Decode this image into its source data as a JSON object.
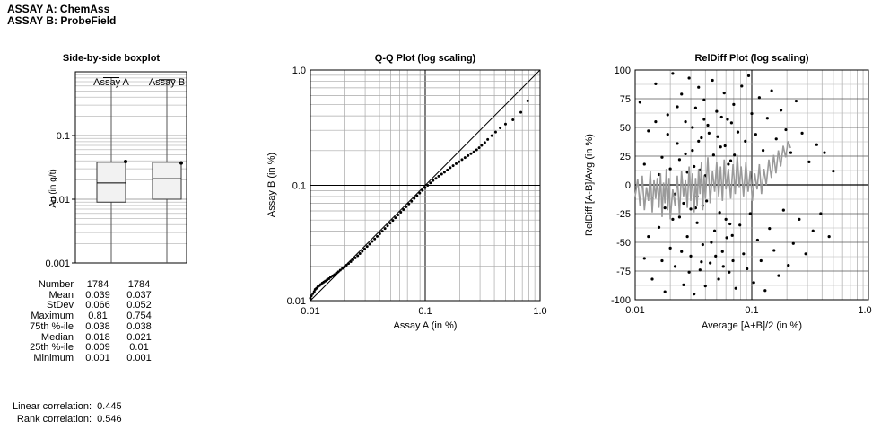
{
  "header": {
    "assay_a": "ASSAY A: ChemAss",
    "assay_b": "ASSAY B: ProbeField"
  },
  "chart_data": [
    {
      "type": "box",
      "title": "Side-by-side boxplot",
      "ylabel": "Au (in g/t)",
      "yscale": "log",
      "ylim": [
        0.001,
        1.0
      ],
      "yticks": [
        "0.1",
        "0.01",
        "0.001"
      ],
      "categories": [
        "Assay A",
        "Assay B"
      ],
      "boxes": [
        {
          "name": "Assay A",
          "whisker_low": 0.001,
          "q1": 0.009,
          "median": 0.018,
          "q3": 0.038,
          "whisker_high": 0.81,
          "mean": 0.039
        },
        {
          "name": "Assay B",
          "whisker_low": 0.001,
          "q1": 0.01,
          "median": 0.021,
          "q3": 0.038,
          "whisker_high": 0.754,
          "mean": 0.037
        }
      ],
      "stats": {
        "labels": [
          "Number",
          "Mean",
          "StDev",
          "Maximum",
          "75th %-ile",
          "Median",
          "25th %-ile",
          "Minimum"
        ],
        "assay_a": [
          "1784",
          "0.039",
          "0.066",
          "0.81",
          "0.038",
          "0.018",
          "0.009",
          "0.001"
        ],
        "assay_b": [
          "1784",
          "0.037",
          "0.052",
          "0.754",
          "0.038",
          "0.021",
          "0.01",
          "0.001"
        ]
      },
      "correlations": [
        {
          "label": "Linear correlation:",
          "value": "0.445"
        },
        {
          "label": "Rank correlation:",
          "value": "0.546"
        }
      ]
    },
    {
      "type": "scatter",
      "title": "Q-Q Plot (log scaling)",
      "xlabel": "Assay A (in %)",
      "ylabel": "Assay B (in %)",
      "xscale": "log",
      "yscale": "log",
      "xlim": [
        0.01,
        1.0
      ],
      "ylim": [
        0.01,
        1.0
      ],
      "xticks": [
        "0.01",
        "0.1",
        "1.0"
      ],
      "yticks": [
        "0.01",
        "0.1",
        "1.0"
      ],
      "reference_line": "y = x",
      "points": [
        [
          0.01,
          0.0105
        ],
        [
          0.0102,
          0.011
        ],
        [
          0.0105,
          0.0115
        ],
        [
          0.0108,
          0.012
        ],
        [
          0.011,
          0.0125
        ],
        [
          0.0113,
          0.0128
        ],
        [
          0.0116,
          0.0132
        ],
        [
          0.012,
          0.0135
        ],
        [
          0.0123,
          0.0138
        ],
        [
          0.0127,
          0.0142
        ],
        [
          0.0131,
          0.0145
        ],
        [
          0.0135,
          0.0148
        ],
        [
          0.014,
          0.0152
        ],
        [
          0.0145,
          0.0155
        ],
        [
          0.015,
          0.016
        ],
        [
          0.0156,
          0.0164
        ],
        [
          0.0162,
          0.0168
        ],
        [
          0.0168,
          0.0173
        ],
        [
          0.0175,
          0.0178
        ],
        [
          0.0182,
          0.0184
        ],
        [
          0.019,
          0.019
        ],
        [
          0.0198,
          0.0196
        ],
        [
          0.0206,
          0.0203
        ],
        [
          0.0215,
          0.021
        ],
        [
          0.0225,
          0.0218
        ],
        [
          0.0235,
          0.0226
        ],
        [
          0.0246,
          0.0235
        ],
        [
          0.0258,
          0.0245
        ],
        [
          0.027,
          0.0256
        ],
        [
          0.0283,
          0.0268
        ],
        [
          0.0297,
          0.0281
        ],
        [
          0.0312,
          0.0295
        ],
        [
          0.0328,
          0.031
        ],
        [
          0.0345,
          0.0326
        ],
        [
          0.0363,
          0.0343
        ],
        [
          0.0382,
          0.0361
        ],
        [
          0.0402,
          0.038
        ],
        [
          0.0423,
          0.04
        ],
        [
          0.0446,
          0.0422
        ],
        [
          0.047,
          0.0445
        ],
        [
          0.0495,
          0.047
        ],
        [
          0.0522,
          0.0496
        ],
        [
          0.055,
          0.0524
        ],
        [
          0.058,
          0.0553
        ],
        [
          0.0612,
          0.0584
        ],
        [
          0.0646,
          0.0617
        ],
        [
          0.0682,
          0.0652
        ],
        [
          0.072,
          0.0689
        ],
        [
          0.076,
          0.0728
        ],
        [
          0.0802,
          0.0769
        ],
        [
          0.0847,
          0.0812
        ],
        [
          0.0894,
          0.0857
        ],
        [
          0.0944,
          0.0905
        ],
        [
          0.0997,
          0.0955
        ],
        [
          0.105,
          0.1
        ],
        [
          0.111,
          0.105
        ],
        [
          0.117,
          0.11
        ],
        [
          0.124,
          0.115
        ],
        [
          0.131,
          0.12
        ],
        [
          0.139,
          0.125
        ],
        [
          0.147,
          0.13
        ],
        [
          0.156,
          0.136
        ],
        [
          0.165,
          0.142
        ],
        [
          0.175,
          0.148
        ],
        [
          0.186,
          0.154
        ],
        [
          0.197,
          0.16
        ],
        [
          0.209,
          0.167
        ],
        [
          0.222,
          0.174
        ],
        [
          0.236,
          0.181
        ],
        [
          0.25,
          0.188
        ],
        [
          0.265,
          0.195
        ],
        [
          0.28,
          0.203
        ],
        [
          0.295,
          0.212
        ],
        [
          0.31,
          0.222
        ],
        [
          0.33,
          0.235
        ],
        [
          0.35,
          0.25
        ],
        [
          0.38,
          0.27
        ],
        [
          0.41,
          0.29
        ],
        [
          0.45,
          0.315
        ],
        [
          0.5,
          0.34
        ],
        [
          0.58,
          0.37
        ],
        [
          0.68,
          0.43
        ],
        [
          0.78,
          0.54
        ]
      ]
    },
    {
      "type": "scatter",
      "title": "RelDiff Plot (log scaling)",
      "xlabel": "Average [A+B]/2 (in %)",
      "ylabel": "RelDiff [A-B]/Avg (in %)",
      "xscale": "log",
      "xlim": [
        0.01,
        1.0
      ],
      "ylim": [
        -100,
        100
      ],
      "xticks": [
        "0.01",
        "0.1",
        "1.0"
      ],
      "yticks": [
        "100",
        "75",
        "50",
        "25",
        "0",
        "-25",
        "-50",
        "-75",
        "-100"
      ],
      "zero_line": 0,
      "points": [
        [
          0.011,
          72
        ],
        [
          0.012,
          -64
        ],
        [
          0.013,
          47
        ],
        [
          0.014,
          -82
        ],
        [
          0.015,
          88
        ],
        [
          0.016,
          -37
        ],
        [
          0.017,
          24
        ],
        [
          0.018,
          -93
        ],
        [
          0.019,
          61
        ],
        [
          0.02,
          -55
        ],
        [
          0.021,
          97
        ],
        [
          0.022,
          -71
        ],
        [
          0.023,
          36
        ],
        [
          0.024,
          -28
        ],
        [
          0.025,
          79
        ],
        [
          0.026,
          -87
        ],
        [
          0.027,
          55
        ],
        [
          0.028,
          -45
        ],
        [
          0.029,
          93
        ],
        [
          0.03,
          -62
        ],
        [
          0.031,
          30
        ],
        [
          0.032,
          -95
        ],
        [
          0.033,
          67
        ],
        [
          0.034,
          -33
        ],
        [
          0.035,
          85
        ],
        [
          0.036,
          -74
        ],
        [
          0.037,
          41
        ],
        [
          0.038,
          -52
        ],
        [
          0.039,
          74
        ],
        [
          0.04,
          -88
        ],
        [
          0.042,
          52
        ],
        [
          0.044,
          -68
        ],
        [
          0.046,
          91
        ],
        [
          0.048,
          -40
        ],
        [
          0.05,
          64
        ],
        [
          0.052,
          -82
        ],
        [
          0.054,
          33
        ],
        [
          0.056,
          -58
        ],
        [
          0.058,
          80
        ],
        [
          0.06,
          -30
        ],
        [
          0.062,
          57
        ],
        [
          0.064,
          -76
        ],
        [
          0.066,
          21
        ],
        [
          0.068,
          -44
        ],
        [
          0.07,
          70
        ],
        [
          0.073,
          -90
        ],
        [
          0.076,
          46
        ],
        [
          0.079,
          -35
        ],
        [
          0.082,
          86
        ],
        [
          0.085,
          -60
        ],
        [
          0.088,
          38
        ],
        [
          0.091,
          -73
        ],
        [
          0.094,
          95
        ],
        [
          0.097,
          -25
        ],
        [
          0.1,
          62
        ],
        [
          0.104,
          -85
        ],
        [
          0.108,
          44
        ],
        [
          0.112,
          -48
        ],
        [
          0.116,
          76
        ],
        [
          0.12,
          -66
        ],
        [
          0.125,
          30
        ],
        [
          0.13,
          -92
        ],
        [
          0.136,
          58
        ],
        [
          0.142,
          -38
        ],
        [
          0.148,
          82
        ],
        [
          0.155,
          -57
        ],
        [
          0.162,
          40
        ],
        [
          0.17,
          -79
        ],
        [
          0.178,
          65
        ],
        [
          0.187,
          -22
        ],
        [
          0.196,
          48
        ],
        [
          0.206,
          -70
        ],
        [
          0.216,
          28
        ],
        [
          0.227,
          -51
        ],
        [
          0.24,
          73
        ],
        [
          0.255,
          -30
        ],
        [
          0.27,
          45
        ],
        [
          0.29,
          -60
        ],
        [
          0.31,
          20
        ],
        [
          0.335,
          -40
        ],
        [
          0.36,
          35
        ],
        [
          0.39,
          -25
        ],
        [
          0.42,
          28
        ],
        [
          0.46,
          -45
        ],
        [
          0.5,
          12
        ],
        [
          0.012,
          18
        ],
        [
          0.014,
          -12
        ],
        [
          0.016,
          9
        ],
        [
          0.018,
          -20
        ],
        [
          0.02,
          14
        ],
        [
          0.022,
          -8
        ],
        [
          0.024,
          22
        ],
        [
          0.026,
          -16
        ],
        [
          0.028,
          11
        ],
        [
          0.03,
          -21
        ],
        [
          0.032,
          16
        ],
        [
          0.034,
          -10
        ],
        [
          0.036,
          13
        ],
        [
          0.038,
          -18
        ],
        [
          0.04,
          8
        ],
        [
          0.013,
          -45
        ],
        [
          0.015,
          55
        ],
        [
          0.017,
          -66
        ],
        [
          0.019,
          44
        ],
        [
          0.021,
          -30
        ],
        [
          0.023,
          68
        ],
        [
          0.025,
          -58
        ],
        [
          0.027,
          27
        ],
        [
          0.029,
          -76
        ],
        [
          0.031,
          50
        ],
        [
          0.033,
          -20
        ],
        [
          0.035,
          38
        ],
        [
          0.037,
          -67
        ],
        [
          0.039,
          57
        ],
        [
          0.041,
          -14
        ],
        [
          0.043,
          45
        ],
        [
          0.045,
          -50
        ],
        [
          0.047,
          26
        ],
        [
          0.049,
          -62
        ],
        [
          0.051,
          42
        ],
        [
          0.053,
          -24
        ],
        [
          0.055,
          59
        ],
        [
          0.057,
          -71
        ],
        [
          0.059,
          34
        ],
        [
          0.061,
          -46
        ],
        [
          0.063,
          18
        ],
        [
          0.065,
          -34
        ],
        [
          0.067,
          54
        ],
        [
          0.069,
          -66
        ],
        [
          0.071,
          26
        ]
      ],
      "moving_average": [
        [
          0.01,
          -10
        ],
        [
          0.0105,
          5
        ],
        [
          0.011,
          -18
        ],
        [
          0.0115,
          8
        ],
        [
          0.012,
          -22
        ],
        [
          0.0125,
          -2
        ],
        [
          0.013,
          -14
        ],
        [
          0.0135,
          12
        ],
        [
          0.014,
          -24
        ],
        [
          0.0145,
          4
        ],
        [
          0.015,
          -12
        ],
        [
          0.0155,
          6
        ],
        [
          0.016,
          -20
        ],
        [
          0.0165,
          10
        ],
        [
          0.017,
          -28
        ],
        [
          0.0175,
          2
        ],
        [
          0.018,
          -16
        ],
        [
          0.0185,
          14
        ],
        [
          0.019,
          -22
        ],
        [
          0.0195,
          6
        ],
        [
          0.02,
          -30
        ],
        [
          0.021,
          -4
        ],
        [
          0.022,
          -18
        ],
        [
          0.023,
          8
        ],
        [
          0.024,
          -26
        ],
        [
          0.025,
          12
        ],
        [
          0.026,
          -10
        ],
        [
          0.027,
          4
        ],
        [
          0.028,
          -20
        ],
        [
          0.029,
          16
        ],
        [
          0.03,
          -14
        ],
        [
          0.031,
          10
        ],
        [
          0.032,
          -24
        ],
        [
          0.033,
          6
        ],
        [
          0.034,
          -18
        ],
        [
          0.035,
          14
        ],
        [
          0.036,
          -8
        ],
        [
          0.037,
          20
        ],
        [
          0.038,
          -22
        ],
        [
          0.039,
          8
        ],
        [
          0.04,
          -12
        ],
        [
          0.042,
          24
        ],
        [
          0.044,
          -16
        ],
        [
          0.046,
          12
        ],
        [
          0.048,
          -6
        ],
        [
          0.05,
          20
        ],
        [
          0.052,
          -10
        ],
        [
          0.054,
          16
        ],
        [
          0.056,
          -14
        ],
        [
          0.058,
          22
        ],
        [
          0.06,
          -4
        ],
        [
          0.063,
          14
        ],
        [
          0.066,
          -12
        ],
        [
          0.069,
          18
        ],
        [
          0.072,
          -8
        ],
        [
          0.075,
          26
        ],
        [
          0.078,
          -2
        ],
        [
          0.081,
          16
        ],
        [
          0.085,
          -10
        ],
        [
          0.089,
          20
        ],
        [
          0.093,
          -6
        ],
        [
          0.097,
          12
        ],
        [
          0.101,
          -14
        ],
        [
          0.106,
          10
        ],
        [
          0.111,
          -4
        ],
        [
          0.116,
          18
        ],
        [
          0.121,
          -8
        ],
        [
          0.127,
          14
        ],
        [
          0.133,
          0
        ],
        [
          0.14,
          22
        ],
        [
          0.147,
          6
        ],
        [
          0.154,
          26
        ],
        [
          0.161,
          10
        ],
        [
          0.169,
          30
        ],
        [
          0.177,
          16
        ],
        [
          0.186,
          34
        ],
        [
          0.195,
          24
        ],
        [
          0.205,
          38
        ],
        [
          0.215,
          32
        ]
      ]
    }
  ]
}
